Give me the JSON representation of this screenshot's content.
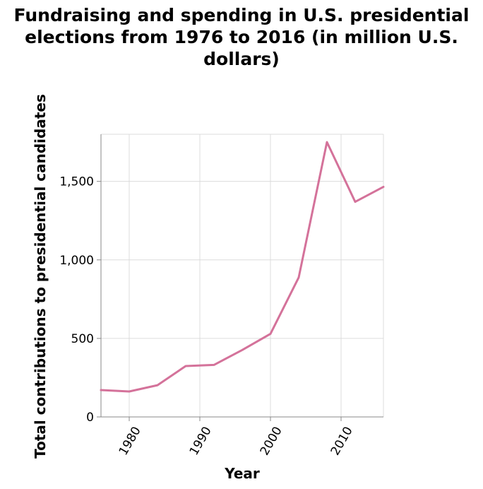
{
  "chart_data": {
    "type": "line",
    "title_lines": [
      "Fundraising and spending in U.S. presidential",
      "elections from 1976 to 2016 (in million U.S.",
      "dollars)"
    ],
    "xlabel": "Year",
    "ylabel": "Total contributions to presidential candidates",
    "x_ticks": [
      1980,
      1990,
      2000,
      2010
    ],
    "x_tick_labels": [
      "1980",
      "1990",
      "2000",
      "2010"
    ],
    "y_ticks": [
      0,
      500,
      1000,
      1500
    ],
    "y_tick_labels": [
      "0",
      "500",
      "1,000",
      "1,500"
    ],
    "xlim": [
      1976,
      2016
    ],
    "ylim": [
      0,
      1800
    ],
    "grid": true,
    "line_color": "#d4729a",
    "series": [
      {
        "x": [
          1976,
          1980,
          1984,
          1988,
          1992,
          1996,
          2000,
          2004,
          2008,
          2012,
          2016
        ],
        "values": [
          171,
          162,
          202,
          324,
          331,
          426,
          529,
          888,
          1750,
          1370,
          1465
        ]
      }
    ]
  }
}
